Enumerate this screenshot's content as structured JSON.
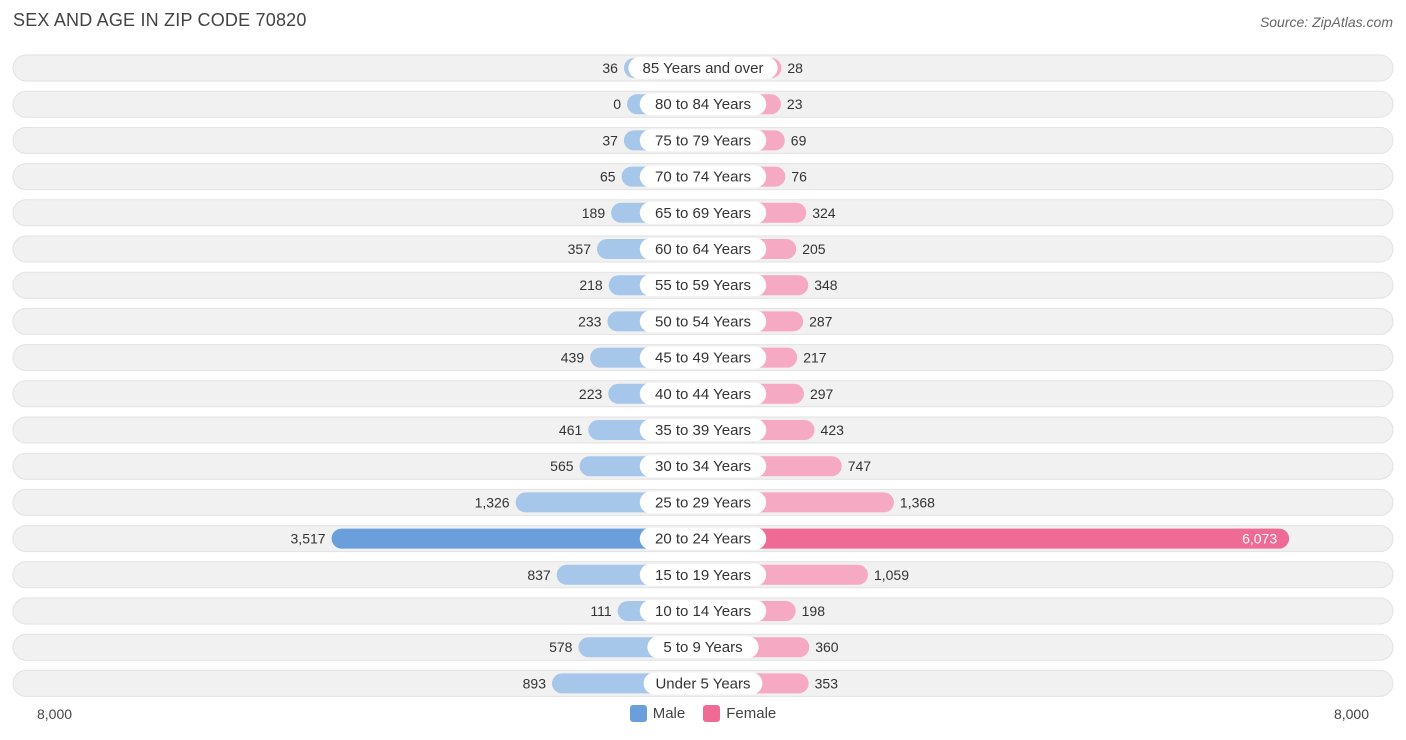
{
  "title": "SEX AND AGE IN ZIP CODE 70820",
  "source": "Source: ZipAtlas.com",
  "colors": {
    "male": "#a7c7ea",
    "male_highlight": "#6b9fdc",
    "female": "#f6a9c3",
    "female_highlight": "#f06a96",
    "row_bg": "#f1f1f1"
  },
  "axis": {
    "left_label": "8,000",
    "right_label": "8,000"
  },
  "legend": {
    "male_label": "Male",
    "female_label": "Female"
  },
  "chart_data": {
    "type": "bar",
    "orientation": "horizontal-population-pyramid",
    "title": "SEX AND AGE IN ZIP CODE 70820",
    "xlim": [
      -8000,
      8000
    ],
    "categories": [
      "85 Years and over",
      "80 to 84 Years",
      "75 to 79 Years",
      "70 to 74 Years",
      "65 to 69 Years",
      "60 to 64 Years",
      "55 to 59 Years",
      "50 to 54 Years",
      "45 to 49 Years",
      "40 to 44 Years",
      "35 to 39 Years",
      "30 to 34 Years",
      "25 to 29 Years",
      "20 to 24 Years",
      "15 to 19 Years",
      "10 to 14 Years",
      "5 to 9 Years",
      "Under 5 Years"
    ],
    "series": [
      {
        "name": "Male",
        "values": [
          36,
          0,
          37,
          65,
          189,
          357,
          218,
          233,
          439,
          223,
          461,
          565,
          1326,
          3517,
          837,
          111,
          578,
          893
        ],
        "labels": [
          "36",
          "0",
          "37",
          "65",
          "189",
          "357",
          "218",
          "233",
          "439",
          "223",
          "461",
          "565",
          "1,326",
          "3,517",
          "837",
          "111",
          "578",
          "893"
        ]
      },
      {
        "name": "Female",
        "values": [
          28,
          23,
          69,
          76,
          324,
          205,
          348,
          287,
          217,
          297,
          423,
          747,
          1368,
          6073,
          1059,
          198,
          360,
          353
        ],
        "labels": [
          "28",
          "23",
          "69",
          "76",
          "324",
          "205",
          "348",
          "287",
          "217",
          "297",
          "423",
          "747",
          "1,368",
          "6,073",
          "1,059",
          "198",
          "360",
          "353"
        ]
      }
    ]
  }
}
